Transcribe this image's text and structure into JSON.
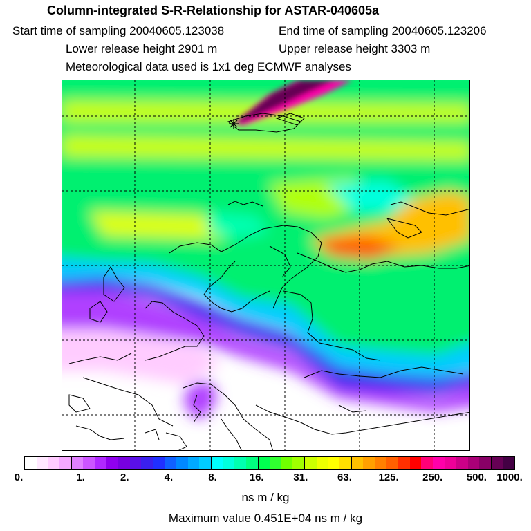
{
  "header": {
    "title": "Column-integrated S-R-Relationship for ASTAR-040605a",
    "start": "Start time of sampling 20040605.123038",
    "end": "End time of sampling 20040605.123206",
    "lower": "Lower release height 2901 m",
    "upper": "Upper release height 3303 m",
    "met": "Meteorological data used is 1x1 deg ECMWF analyses"
  },
  "colorbar": {
    "ticks": [
      "0.",
      "1.",
      "2.",
      "4.",
      "8.",
      "16.",
      "31.",
      "63.",
      "125.",
      "250.",
      "500.",
      "1000."
    ],
    "colors": [
      "#ffffff",
      "#ffe8ff",
      "#ffccff",
      "#f5a8ff",
      "#e080ff",
      "#cc55ff",
      "#b028ff",
      "#9000ee",
      "#7800e0",
      "#5a10e8",
      "#3a20ee",
      "#2030ff",
      "#1060ff",
      "#0088ff",
      "#00aaff",
      "#00ccff",
      "#00ffff",
      "#00ffdd",
      "#00ffb0",
      "#00ff80",
      "#00ff50",
      "#30ff30",
      "#70ff00",
      "#a0ff00",
      "#ccff00",
      "#eeff00",
      "#ffff00",
      "#ffe000",
      "#ffc000",
      "#ffa000",
      "#ff8000",
      "#ff6000",
      "#ff3000",
      "#ff0000",
      "#ff0077",
      "#ff00aa",
      "#ee0099",
      "#cc0088",
      "#aa0077",
      "#880066",
      "#660055",
      "#440044"
    ],
    "units": "ns m / kg",
    "max": "Maximum value  0.451E+04 ns m / kg"
  }
}
